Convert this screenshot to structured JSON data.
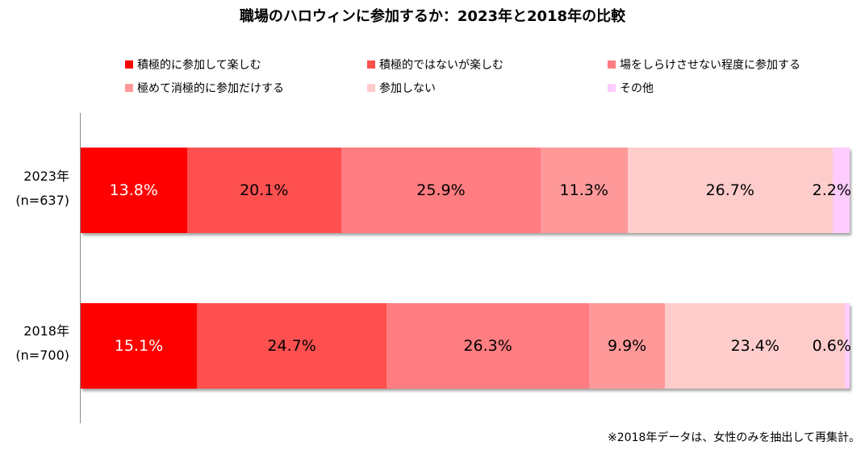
{
  "chart_data": {
    "type": "bar",
    "orientation": "horizontal-stacked-100",
    "title": "職場のハロウィンに参加するか：2023年と2018年の比較",
    "categories": [
      "積極的に参加して楽しむ",
      "積極的ではないが楽しむ",
      "場をしらけさせない程度に参加する",
      "極めて消極的に参加だけする",
      "参加しない",
      "その他"
    ],
    "colors": [
      "#ff0000",
      "#ff5050",
      "#ff7c80",
      "#ff9999",
      "#ffcccc",
      "#ffccff"
    ],
    "label_colors": [
      "#ffffff",
      "#000000",
      "#000000",
      "#000000",
      "#000000",
      "#000000"
    ],
    "series": [
      {
        "name": "2023年",
        "sample": "(n=637)",
        "values": [
          13.8,
          20.1,
          25.9,
          11.3,
          26.7,
          2.2
        ],
        "labels": [
          "13.8%",
          "20.1%",
          "25.9%",
          "11.3%",
          "26.7%",
          "2.2%"
        ]
      },
      {
        "name": "2018年",
        "sample": "(n=700)",
        "values": [
          15.1,
          24.7,
          26.3,
          9.9,
          23.4,
          0.6
        ],
        "labels": [
          "15.1%",
          "24.7%",
          "26.3%",
          "9.9%",
          "23.4%",
          "0.6%"
        ]
      }
    ],
    "xlim": [
      0,
      100
    ],
    "legend_position": "top",
    "footnote": "※2018年データは、女性のみを抽出して再集計。"
  }
}
